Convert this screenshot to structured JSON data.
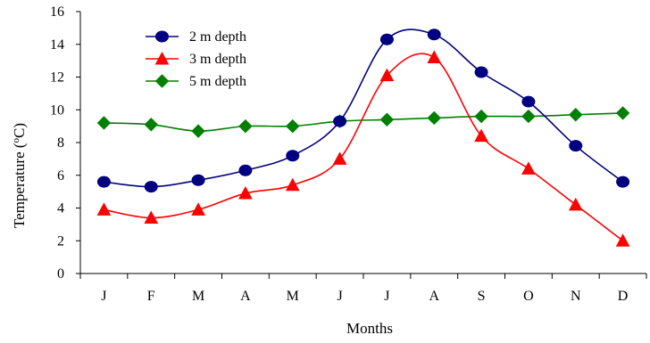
{
  "chart_data": {
    "type": "line",
    "title": "",
    "xlabel": "Months",
    "ylabel": "Temperature (°C)",
    "ylabel_parts": {
      "before": "Temperature (",
      "sup": "o",
      "after": "C)"
    },
    "categories": [
      "J",
      "F",
      "M",
      "A",
      "M",
      "J",
      "J",
      "A",
      "S",
      "O",
      "N",
      "D"
    ],
    "ylim": [
      0,
      16
    ],
    "yticks": [
      "0",
      "2",
      "4",
      "6",
      "8",
      "10",
      "12",
      "14",
      "16"
    ],
    "grid": false,
    "legend_position": "top-left",
    "series": [
      {
        "name": "2 m depth",
        "color": "#000080",
        "marker": "circle",
        "values": [
          5.6,
          5.3,
          5.7,
          6.3,
          7.2,
          9.3,
          14.3,
          14.6,
          12.3,
          10.5,
          7.8,
          5.6
        ]
      },
      {
        "name": "3 m depth",
        "color": "#ff0000",
        "marker": "triangle",
        "values": [
          3.9,
          3.4,
          3.9,
          4.9,
          5.4,
          7.0,
          12.1,
          13.2,
          8.4,
          6.4,
          4.2,
          2.0
        ]
      },
      {
        "name": "5 m depth",
        "color": "#008000",
        "marker": "diamond",
        "values": [
          9.2,
          9.1,
          8.7,
          9.0,
          9.0,
          9.3,
          9.4,
          9.5,
          9.6,
          9.6,
          9.7,
          9.8
        ]
      }
    ]
  }
}
